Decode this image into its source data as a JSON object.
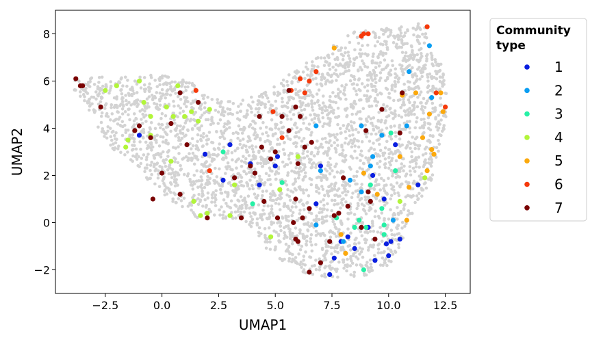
{
  "chart_data": {
    "type": "scatter",
    "xlabel": "UMAP1",
    "ylabel": "UMAP2",
    "xlim": [
      -4.7,
      13.6
    ],
    "ylim": [
      -3.0,
      9.0
    ],
    "xticks": [
      -2.5,
      0.0,
      2.5,
      5.0,
      7.5,
      10.0,
      12.5
    ],
    "xtick_labels": [
      "−2.5",
      "0.0",
      "2.5",
      "5.0",
      "7.5",
      "10.0",
      "12.5"
    ],
    "yticks": [
      -2,
      0,
      2,
      4,
      6,
      8
    ],
    "ytick_labels": [
      "−2",
      "0",
      "2",
      "4",
      "6",
      "8"
    ],
    "grid": false,
    "legend": {
      "title": "Community type",
      "title_lines": [
        "Community",
        "type"
      ],
      "placement": "outside-right"
    },
    "background_color": "#d3d3d3",
    "series": [
      {
        "name": "1",
        "color": "#0a1fe0",
        "points": [
          [
            -1.0,
            3.7
          ],
          [
            1.9,
            2.9
          ],
          [
            2.7,
            1.8
          ],
          [
            3.0,
            3.3
          ],
          [
            3.9,
            2.5
          ],
          [
            4.3,
            1.6
          ],
          [
            5.0,
            2.4
          ],
          [
            5.1,
            2.8
          ],
          [
            6.8,
            0.8
          ],
          [
            7.0,
            2.4
          ],
          [
            7.6,
            -1.5
          ],
          [
            7.9,
            -0.8
          ],
          [
            7.4,
            -2.2
          ],
          [
            8.2,
            -0.6
          ],
          [
            8.5,
            -1.1
          ],
          [
            9.1,
            -0.2
          ],
          [
            9.3,
            2.0
          ],
          [
            9.4,
            -1.6
          ],
          [
            9.8,
            1.0
          ],
          [
            10.0,
            -1.4
          ],
          [
            10.1,
            -0.8
          ],
          [
            10.3,
            3.3
          ],
          [
            10.5,
            -0.7
          ],
          [
            11.3,
            1.6
          ],
          [
            9.9,
            -0.9
          ]
        ]
      },
      {
        "name": "2",
        "color": "#0a9ef2",
        "points": [
          [
            6.8,
            4.1
          ],
          [
            7.0,
            2.2
          ],
          [
            6.8,
            -0.1
          ],
          [
            8.0,
            -0.8
          ],
          [
            8.3,
            1.8
          ],
          [
            8.8,
            1.3
          ],
          [
            8.8,
            4.1
          ],
          [
            9.2,
            2.4
          ],
          [
            9.3,
            2.8
          ],
          [
            9.7,
            3.7
          ],
          [
            10.2,
            0.1
          ],
          [
            10.8,
            4.1
          ],
          [
            10.9,
            6.4
          ],
          [
            11.8,
            7.5
          ],
          [
            11.9,
            5.3
          ]
        ]
      },
      {
        "name": "3",
        "color": "#27f0a6",
        "points": [
          [
            2.7,
            3.0
          ],
          [
            4.0,
            0.8
          ],
          [
            5.3,
            1.7
          ],
          [
            7.7,
            0.2
          ],
          [
            8.5,
            -0.2
          ],
          [
            8.9,
            -2.0
          ],
          [
            9.0,
            -0.2
          ],
          [
            9.2,
            1.6
          ],
          [
            9.7,
            0.6
          ],
          [
            9.8,
            -0.1
          ],
          [
            9.8,
            -0.5
          ],
          [
            10.1,
            3.8
          ],
          [
            10.3,
            2.2
          ],
          [
            8.7,
            0.1
          ]
        ]
      },
      {
        "name": "4",
        "color": "#b2f53a",
        "points": [
          [
            -2.5,
            5.6
          ],
          [
            -2.0,
            5.8
          ],
          [
            -1.6,
            3.2
          ],
          [
            -1.5,
            3.5
          ],
          [
            -1.0,
            6.0
          ],
          [
            -0.8,
            5.1
          ],
          [
            -0.5,
            3.7
          ],
          [
            -0.5,
            4.5
          ],
          [
            0.2,
            4.9
          ],
          [
            0.5,
            4.5
          ],
          [
            0.7,
            5.8
          ],
          [
            1.0,
            4.5
          ],
          [
            1.3,
            4.7
          ],
          [
            1.6,
            4.3
          ],
          [
            1.7,
            0.3
          ],
          [
            2.0,
            0.4
          ],
          [
            2.1,
            4.8
          ],
          [
            0.4,
            2.6
          ],
          [
            1.4,
            0.9
          ],
          [
            3.0,
            0.3
          ],
          [
            3.2,
            1.6
          ],
          [
            4.8,
            -0.6
          ],
          [
            5.2,
            1.4
          ],
          [
            6.0,
            2.8
          ],
          [
            10.5,
            0.9
          ],
          [
            11.6,
            1.9
          ]
        ]
      },
      {
        "name": "5",
        "color": "#fba90d",
        "points": [
          [
            7.6,
            7.4
          ],
          [
            7.9,
            -0.5
          ],
          [
            8.1,
            -1.3
          ],
          [
            8.9,
            2.1
          ],
          [
            9.5,
            1.2
          ],
          [
            10.5,
            2.8
          ],
          [
            10.6,
            5.4
          ],
          [
            10.8,
            0.1
          ],
          [
            10.9,
            1.5
          ],
          [
            11.2,
            5.5
          ],
          [
            11.5,
            3.6
          ],
          [
            11.7,
            2.2
          ],
          [
            11.8,
            4.6
          ],
          [
            11.9,
            3.1
          ],
          [
            12.0,
            2.9
          ],
          [
            12.3,
            5.5
          ],
          [
            12.4,
            4.7
          ]
        ]
      },
      {
        "name": "6",
        "color": "#f5390a",
        "points": [
          [
            1.5,
            5.6
          ],
          [
            2.1,
            2.2
          ],
          [
            4.9,
            4.7
          ],
          [
            5.3,
            3.6
          ],
          [
            5.7,
            5.6
          ],
          [
            6.1,
            6.1
          ],
          [
            6.3,
            5.5
          ],
          [
            6.5,
            6.0
          ],
          [
            6.8,
            6.4
          ],
          [
            8.8,
            7.9
          ],
          [
            8.9,
            8.0
          ],
          [
            9.1,
            8.0
          ],
          [
            11.7,
            8.3
          ],
          [
            12.1,
            5.5
          ],
          [
            12.5,
            4.9
          ]
        ]
      },
      {
        "name": "7",
        "color": "#7a0303",
        "points": [
          [
            -3.8,
            6.1
          ],
          [
            -3.6,
            5.8
          ],
          [
            -3.5,
            5.8
          ],
          [
            -2.7,
            4.9
          ],
          [
            -1.2,
            3.9
          ],
          [
            -1.0,
            4.1
          ],
          [
            -0.5,
            3.6
          ],
          [
            -0.4,
            1.0
          ],
          [
            0.0,
            2.1
          ],
          [
            0.4,
            4.2
          ],
          [
            0.8,
            5.5
          ],
          [
            0.8,
            1.2
          ],
          [
            1.1,
            3.3
          ],
          [
            1.6,
            5.1
          ],
          [
            2.0,
            0.2
          ],
          [
            3.2,
            1.9
          ],
          [
            3.5,
            0.2
          ],
          [
            3.9,
            2.4
          ],
          [
            4.1,
            2.1
          ],
          [
            4.3,
            4.5
          ],
          [
            4.4,
            3.2
          ],
          [
            4.5,
            0.9
          ],
          [
            4.8,
            2.7
          ],
          [
            5.0,
            3.0
          ],
          [
            5.1,
            0.2
          ],
          [
            5.3,
            4.5
          ],
          [
            5.6,
            5.6
          ],
          [
            5.6,
            3.9
          ],
          [
            5.8,
            0.0
          ],
          [
            5.9,
            4.9
          ],
          [
            5.9,
            1.0
          ],
          [
            6.0,
            2.5
          ],
          [
            6.1,
            4.5
          ],
          [
            6.2,
            0.2
          ],
          [
            6.3,
            3.2
          ],
          [
            6.5,
            0.6
          ],
          [
            6.6,
            3.4
          ],
          [
            6.5,
            -2.1
          ],
          [
            7.0,
            -1.7
          ],
          [
            7.4,
            -0.8
          ],
          [
            7.6,
            0.3
          ],
          [
            8.0,
            1.9
          ],
          [
            8.2,
            0.7
          ],
          [
            8.8,
            -0.2
          ],
          [
            9.0,
            3.9
          ],
          [
            9.2,
            0.9
          ],
          [
            9.4,
            -0.7
          ],
          [
            9.7,
            4.8
          ],
          [
            10.6,
            5.5
          ],
          [
            10.5,
            3.8
          ],
          [
            6.0,
            -0.8
          ],
          [
            5.9,
            -0.7
          ],
          [
            7.8,
            0.4
          ],
          [
            9.1,
            1.3
          ]
        ]
      }
    ]
  }
}
